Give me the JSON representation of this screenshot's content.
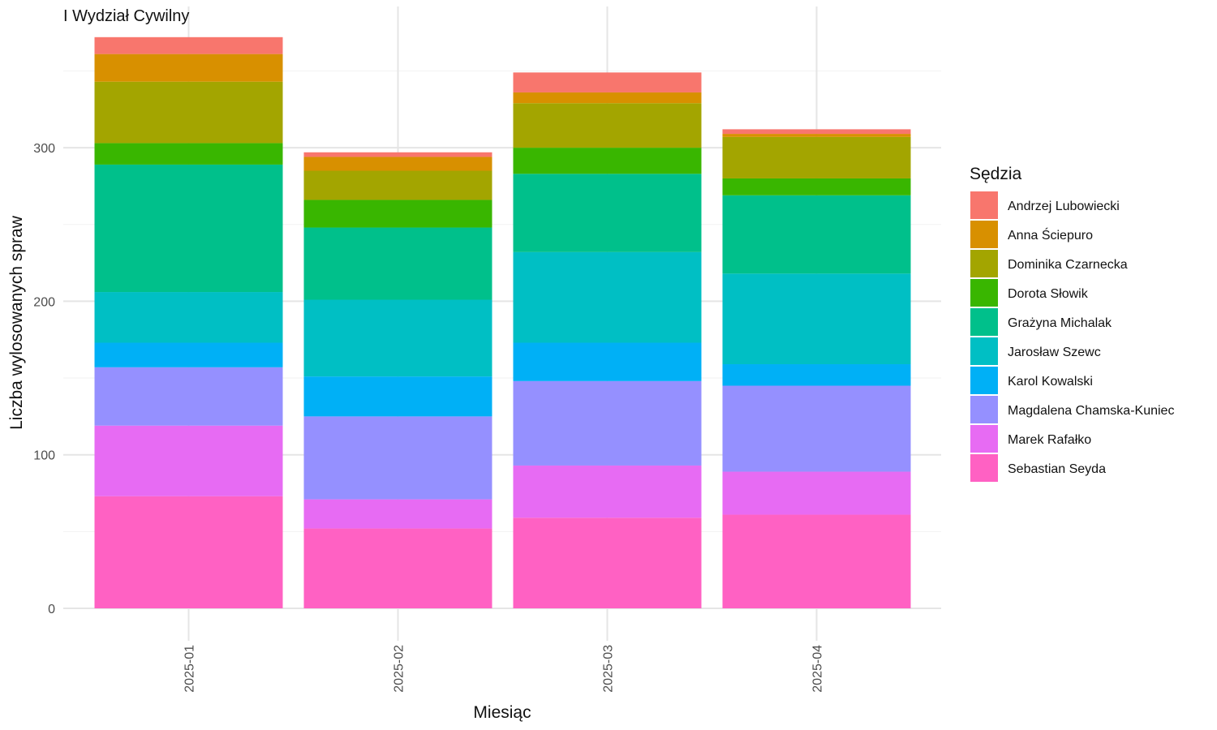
{
  "chart_data": {
    "type": "bar",
    "stacked": true,
    "title": "I Wydział Cywilny",
    "xlabel": "Miesiąc",
    "ylabel": "Liczba wylosowanych spraw",
    "categories": [
      "2025-01",
      "2025-02",
      "2025-03",
      "2025-04"
    ],
    "yticks": [
      0,
      100,
      200,
      300
    ],
    "ylim": [
      0,
      380
    ],
    "grid": true,
    "legend": {
      "title": "Sędzia",
      "position": "right"
    },
    "series": [
      {
        "name": "Sebastian Seyda",
        "color": "#FF61C3",
        "values": [
          73,
          52,
          59,
          61
        ]
      },
      {
        "name": "Marek Rafałko",
        "color": "#E76BF3",
        "values": [
          46,
          19,
          34,
          28
        ]
      },
      {
        "name": "Magdalena Chamska-Kuniec",
        "color": "#9590FF",
        "values": [
          38,
          54,
          55,
          56
        ]
      },
      {
        "name": "Karol Kowalski",
        "color": "#00B0F6",
        "values": [
          16,
          26,
          25,
          14
        ]
      },
      {
        "name": "Jarosław Szewc",
        "color": "#00BFC4",
        "values": [
          33,
          50,
          59,
          59
        ]
      },
      {
        "name": "Grażyna Michalak",
        "color": "#00C08B",
        "values": [
          83,
          47,
          51,
          51
        ]
      },
      {
        "name": "Dorota Słowik",
        "color": "#39B600",
        "values": [
          14,
          18,
          17,
          11
        ]
      },
      {
        "name": "Dominika Czarnecka",
        "color": "#A3A500",
        "values": [
          40,
          19,
          29,
          27
        ]
      },
      {
        "name": "Anna Ściepuro",
        "color": "#D89000",
        "values": [
          18,
          9,
          7,
          2
        ]
      },
      {
        "name": "Andrzej Lubowiecki",
        "color": "#F8766D",
        "values": [
          11,
          3,
          13,
          3
        ]
      }
    ]
  }
}
